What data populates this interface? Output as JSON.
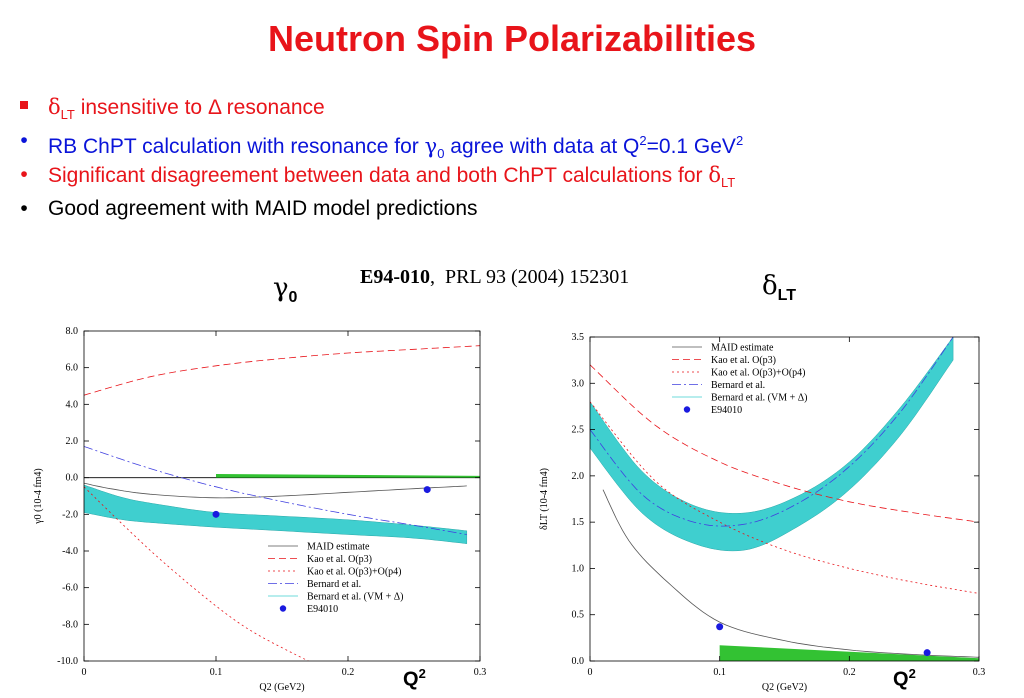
{
  "title": "Neutron Spin Polarizabilities",
  "bullets": [
    {
      "symbol": "δ",
      "sub": "LT",
      "text": " insensitive to ",
      "delta": "Δ",
      "text2": " resonance",
      "color": "#e8141a"
    },
    {
      "text": "RB ChPT calculation with resonance for ",
      "symbol": "γ",
      "sub": "0",
      "text2": " agree with data at Q",
      "sup": "2",
      "text3": "=0.1 GeV",
      "sup2": "2",
      "color": "#0a14d9"
    },
    {
      "text": "Significant disagreement between data and both ChPT calculations for ",
      "symbol": "δ",
      "sub": "LT",
      "color": "#e8141a"
    },
    {
      "text": "Good agreement with MAID model predictions",
      "color": "#000000"
    }
  ],
  "reference": {
    "experiment": "E94-010",
    "sep": ",",
    "journal": "PRL 93 (2004) 152301"
  },
  "panel_labels": {
    "left_symbol": "γ",
    "left_sub": "0",
    "right_symbol": "δ",
    "right_sub": "LT",
    "q2": "Q",
    "q2_sup": "2"
  },
  "chart_data": [
    {
      "type": "line",
      "ylabel": "γ0 (10-4 fm4)",
      "xlabel": "Q2 (GeV2)",
      "xlim": [
        0,
        0.3
      ],
      "ylim": [
        -10,
        8
      ],
      "xticks": [
        "0",
        "0.1",
        "0.2",
        "0.3"
      ],
      "yticks": [
        "8.0",
        "6.0",
        "4.0",
        "2.0",
        "0.0",
        "-2.0",
        "-4.0",
        "-6.0",
        "-8.0",
        "-10.0"
      ],
      "ytick_values": [
        8,
        6,
        4,
        2,
        0,
        -2,
        -4,
        -6,
        -8,
        -10
      ],
      "legend": [
        "MAID estimate",
        "Kao et al. O(p3)",
        "Kao et al. O(p3)+O(p4)",
        "Bernard et al.",
        "Bernard et al. (VM + Δ)",
        "E94010"
      ],
      "series": [
        {
          "name": "MAID estimate",
          "color": "#555555",
          "x": [
            0,
            0.02,
            0.05,
            0.1,
            0.15,
            0.2,
            0.25,
            0.29
          ],
          "y": [
            -0.3,
            -0.6,
            -0.9,
            -1.1,
            -1.0,
            -0.8,
            -0.6,
            -0.45
          ]
        },
        {
          "name": "Kao et al. O(p3)",
          "color": "#e8141a",
          "x": [
            0,
            0.05,
            0.1,
            0.15,
            0.2,
            0.25,
            0.3
          ],
          "y": [
            4.5,
            5.5,
            6.1,
            6.5,
            6.8,
            7.0,
            7.2
          ]
        },
        {
          "name": "Kao et al. O(p3)+O(p4)",
          "color": "#e8141a",
          "x": [
            0,
            0.03,
            0.06,
            0.1,
            0.13,
            0.17
          ],
          "y": [
            -0.5,
            -2.6,
            -4.6,
            -7.0,
            -8.5,
            -10
          ]
        },
        {
          "name": "Bernard et al.",
          "color": "#4040e0",
          "x": [
            0,
            0.05,
            0.1,
            0.15,
            0.2,
            0.25,
            0.29
          ],
          "y": [
            1.7,
            0.5,
            -0.5,
            -1.3,
            -2.0,
            -2.6,
            -3.1
          ]
        },
        {
          "name": "Bernard et al. (VM + Δ) band upper",
          "color": "#3fcfcf",
          "x": [
            0,
            0.03,
            0.06,
            0.1,
            0.15,
            0.2,
            0.25,
            0.29
          ],
          "y": [
            -0.4,
            -1.1,
            -1.5,
            -1.9,
            -2.1,
            -2.3,
            -2.6,
            -2.9
          ]
        },
        {
          "name": "Bernard et al. (VM + Δ) band lower",
          "color": "#3fcfcf",
          "x": [
            0,
            0.03,
            0.06,
            0.1,
            0.15,
            0.2,
            0.25,
            0.29
          ],
          "y": [
            -1.9,
            -2.3,
            -2.5,
            -2.7,
            -2.9,
            -3.1,
            -3.3,
            -3.6
          ]
        },
        {
          "name": "systematic band",
          "color": "#33c233",
          "x": [
            0.1,
            0.3
          ],
          "y_top": [
            0.2,
            0.1
          ],
          "y_bottom": [
            0.0,
            0.0
          ]
        }
      ],
      "points": [
        {
          "name": "E94010",
          "x": [
            0.1,
            0.26
          ],
          "y": [
            -2.0,
            -0.65
          ]
        }
      ]
    },
    {
      "type": "line",
      "ylabel": "δLT (10-4 fm4)",
      "xlabel": "Q2 (GeV2)",
      "xlim": [
        0,
        0.3
      ],
      "ylim": [
        0,
        3.5
      ],
      "xticks": [
        "0",
        "0.1",
        "0.2",
        "0.3"
      ],
      "yticks": [
        "3.5",
        "3.0",
        "2.5",
        "2.0",
        "1.5",
        "1.0",
        "0.5",
        "0.0"
      ],
      "ytick_values": [
        3.5,
        3.0,
        2.5,
        2.0,
        1.5,
        1.0,
        0.5,
        0.0
      ],
      "legend": [
        "MAID estimate",
        "Kao et al. O(p3)",
        "Kao et al. O(p3)+O(p4)",
        "Bernard et al.",
        "Bernard et al. (VM + Δ)",
        "E94010"
      ],
      "series": [
        {
          "name": "MAID estimate",
          "color": "#555555",
          "x": [
            0.01,
            0.03,
            0.06,
            0.1,
            0.15,
            0.2,
            0.25,
            0.3
          ],
          "y": [
            1.85,
            1.3,
            0.85,
            0.42,
            0.22,
            0.12,
            0.07,
            0.04
          ]
        },
        {
          "name": "Kao et al. O(p3)",
          "color": "#e8141a",
          "x": [
            0,
            0.05,
            0.1,
            0.15,
            0.2,
            0.25,
            0.3
          ],
          "y": [
            3.2,
            2.55,
            2.15,
            1.9,
            1.72,
            1.6,
            1.5
          ]
        },
        {
          "name": "Kao et al. O(p3)+O(p4)",
          "color": "#e8141a",
          "x": [
            0,
            0.05,
            0.1,
            0.15,
            0.2,
            0.25,
            0.3
          ],
          "y": [
            2.8,
            1.95,
            1.5,
            1.2,
            1.0,
            0.85,
            0.73
          ]
        },
        {
          "name": "Bernard et al.",
          "color": "#4040e0",
          "x": [
            0,
            0.04,
            0.08,
            0.12,
            0.16,
            0.2,
            0.24,
            0.28
          ],
          "y": [
            2.5,
            1.8,
            1.5,
            1.48,
            1.7,
            2.1,
            2.7,
            3.5
          ]
        },
        {
          "name": "Bernard et al. (VM + Δ) band upper",
          "color": "#3fcfcf",
          "x": [
            0,
            0.04,
            0.08,
            0.12,
            0.16,
            0.2,
            0.24,
            0.28
          ],
          "y": [
            2.8,
            2.05,
            1.68,
            1.6,
            1.78,
            2.15,
            2.75,
            3.5
          ]
        },
        {
          "name": "Bernard et al. (VM + Δ) band lower",
          "color": "#3fcfcf",
          "x": [
            0,
            0.04,
            0.08,
            0.12,
            0.16,
            0.2,
            0.24,
            0.28
          ],
          "y": [
            2.3,
            1.6,
            1.27,
            1.2,
            1.45,
            1.85,
            2.45,
            3.25
          ]
        },
        {
          "name": "systematic band",
          "color": "#33c233",
          "x": [
            0.1,
            0.3
          ],
          "y_top": [
            0.17,
            0.03
          ],
          "y_bottom": [
            0.0,
            0.0
          ]
        }
      ],
      "points": [
        {
          "name": "E94010",
          "x": [
            0.1,
            0.26
          ],
          "y": [
            0.37,
            0.09
          ]
        }
      ]
    }
  ]
}
